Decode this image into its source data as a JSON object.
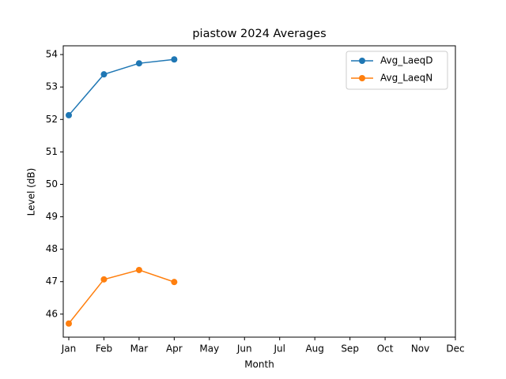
{
  "chart_data": {
    "type": "line",
    "title": "piastow 2024 Averages",
    "x_label": "Month",
    "y_label": "Level (dB)",
    "categories": [
      "Jan",
      "Feb",
      "Mar",
      "Apr",
      "May",
      "Jun",
      "Jul",
      "Aug",
      "Sep",
      "Oct",
      "Nov",
      "Dec"
    ],
    "series": [
      {
        "name": "Avg_LaeqD",
        "color": "#1f77b4",
        "values": [
          52.13,
          53.39,
          53.73,
          53.85,
          null,
          null,
          null,
          null,
          null,
          null,
          null,
          null
        ]
      },
      {
        "name": "Avg_LaeqN",
        "color": "#ff7f0e",
        "values": [
          45.71,
          47.07,
          47.36,
          46.99,
          null,
          null,
          null,
          null,
          null,
          null,
          null,
          null
        ]
      }
    ],
    "ylim": [
      45.29,
      54.27
    ],
    "yticks": [
      46,
      47,
      48,
      49,
      50,
      51,
      52,
      53,
      54
    ],
    "legend": "upper right"
  }
}
